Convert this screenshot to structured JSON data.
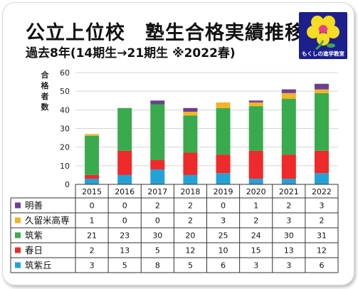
{
  "header": {
    "title": "公立上位校　塾生合格実績推移",
    "subtitle": "過去8年(14期生→21期生 ※2022春)"
  },
  "logo": {
    "text": "もくしの進学教室",
    "colors": {
      "background": "#1d1f8c",
      "petals": "#f4dd22",
      "center": "#e83e8c"
    }
  },
  "chart_data": {
    "type": "bar",
    "stacked": true,
    "categories": [
      "2015",
      "2016",
      "2017",
      "2018",
      "2019",
      "2020",
      "2021",
      "2022"
    ],
    "ylabel": "合格者数",
    "ylim": [
      0,
      60
    ],
    "yticks": [
      0,
      10,
      20,
      30,
      40,
      50,
      60
    ],
    "grid": true,
    "legend": "table-below",
    "series": [
      {
        "name": "筑紫丘",
        "color": "#22a3d8",
        "values": [
          3,
          5,
          8,
          5,
          6,
          3,
          3,
          6
        ]
      },
      {
        "name": "春日",
        "color": "#ee2a2a",
        "values": [
          2,
          13,
          5,
          12,
          10,
          15,
          13,
          12
        ]
      },
      {
        "name": "筑紫",
        "color": "#3aaa4e",
        "values": [
          21,
          23,
          30,
          20,
          25,
          24,
          30,
          31
        ]
      },
      {
        "name": "久留米高専",
        "color": "#f5b324",
        "values": [
          1,
          0,
          0,
          2,
          3,
          2,
          3,
          2
        ]
      },
      {
        "name": "明善",
        "color": "#6b3f95",
        "values": [
          0,
          0,
          2,
          2,
          0,
          1,
          2,
          3
        ]
      }
    ],
    "table_rows": [
      {
        "name": "明善",
        "color": "#6b3f95",
        "values": [
          "0",
          "0",
          "2",
          "2",
          "0",
          "1",
          "2",
          "3"
        ]
      },
      {
        "name": "久留米高専",
        "color": "#f5b324",
        "values": [
          "1",
          "0",
          "0",
          "2",
          "3",
          "2",
          "3",
          "2"
        ]
      },
      {
        "name": "筑紫",
        "color": "#3aaa4e",
        "values": [
          "21",
          "23",
          "30",
          "20",
          "25",
          "24",
          "30",
          "31"
        ]
      },
      {
        "name": "春日",
        "color": "#ee2a2a",
        "values": [
          "2",
          "13",
          "5",
          "12",
          "10",
          "15",
          "13",
          "12"
        ]
      },
      {
        "name": "筑紫丘",
        "color": "#22a3d8",
        "values": [
          "3",
          "5",
          "8",
          "5",
          "6",
          "3",
          "3",
          "6"
        ]
      }
    ]
  }
}
